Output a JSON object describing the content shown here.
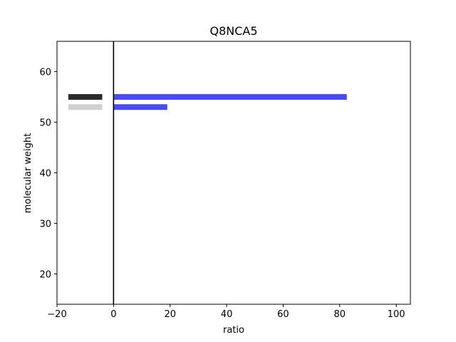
{
  "chart_data": {
    "type": "bar",
    "orientation": "horizontal",
    "title": "Q8NCA5",
    "xlabel": "ratio",
    "ylabel": "molecular weight",
    "xlim": [
      -20,
      105
    ],
    "ylim": [
      14,
      66
    ],
    "xticks": [
      -20,
      0,
      20,
      40,
      60,
      80,
      100
    ],
    "yticks": [
      20,
      30,
      40,
      50,
      60
    ],
    "xtick_labels": [
      "−20",
      "0",
      "20",
      "40",
      "60",
      "80",
      "100"
    ],
    "ytick_labels": [
      "20",
      "30",
      "40",
      "50",
      "60"
    ],
    "reference_line_x": 0,
    "bars": [
      {
        "y": 55,
        "x_start": 0,
        "x_end": 82.5,
        "color": "#4b4bf2"
      },
      {
        "y": 53,
        "x_start": 0,
        "x_end": 19,
        "color": "#4b4bf2"
      }
    ],
    "markers": [
      {
        "y": 55,
        "x_start": -16,
        "x_end": -4,
        "color": "#2b2b2b"
      },
      {
        "y": 53,
        "x_start": -16,
        "x_end": -4,
        "color": "#d0d0d0"
      }
    ],
    "grid": false,
    "legend": "none"
  }
}
